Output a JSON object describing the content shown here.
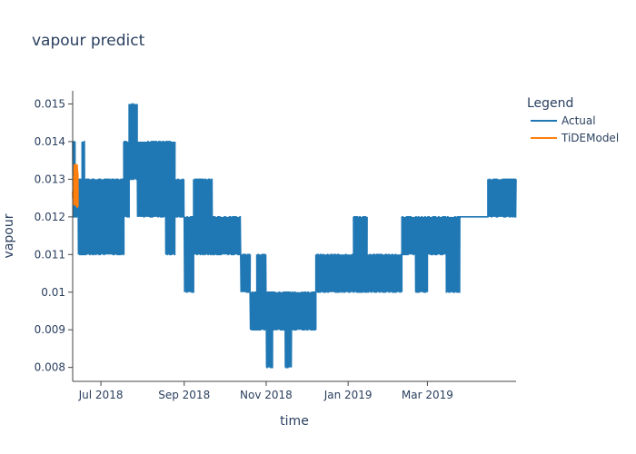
{
  "chart_data": {
    "type": "line",
    "title": "vapour predict",
    "xlabel": "time",
    "ylabel": "vapour",
    "legend_title": "Legend",
    "legend_position": "top-right",
    "x_range": [
      "2018-06-10",
      "2019-05-06"
    ],
    "ylim": [
      0.00763,
      0.01535
    ],
    "x_ticks": [
      {
        "date": "2018-07-01",
        "label": "Jul 2018"
      },
      {
        "date": "2018-09-01",
        "label": "Sep 2018"
      },
      {
        "date": "2018-11-01",
        "label": "Nov 2018"
      },
      {
        "date": "2019-01-01",
        "label": "Jan 2019"
      },
      {
        "date": "2019-03-01",
        "label": "Mar 2019"
      }
    ],
    "y_ticks": [
      {
        "value": 0.008,
        "label": "0.008"
      },
      {
        "value": 0.009,
        "label": "0.009"
      },
      {
        "value": 0.01,
        "label": "0.01"
      },
      {
        "value": 0.011,
        "label": "0.011"
      },
      {
        "value": 0.012,
        "label": "0.012"
      },
      {
        "value": 0.013,
        "label": "0.013"
      },
      {
        "value": 0.014,
        "label": "0.014"
      },
      {
        "value": 0.015,
        "label": "0.015"
      }
    ],
    "grid": false,
    "series": [
      {
        "name": "Actual",
        "color": "#1f77b4",
        "segments": [
          {
            "start": "2018-06-10",
            "end": "2018-06-12",
            "low": 0.012,
            "high": 0.014
          },
          {
            "start": "2018-06-12",
            "end": "2018-06-14",
            "low": 0.012,
            "high": 0.013
          },
          {
            "start": "2018-06-14",
            "end": "2018-06-17",
            "low": 0.011,
            "high": 0.013
          },
          {
            "start": "2018-06-17",
            "end": "2018-06-19",
            "low": 0.011,
            "high": 0.014
          },
          {
            "start": "2018-06-19",
            "end": "2018-07-18",
            "low": 0.011,
            "high": 0.013
          },
          {
            "start": "2018-07-18",
            "end": "2018-07-22",
            "low": 0.012,
            "high": 0.014
          },
          {
            "start": "2018-07-22",
            "end": "2018-07-28",
            "low": 0.013,
            "high": 0.015
          },
          {
            "start": "2018-07-28",
            "end": "2018-08-04",
            "low": 0.012,
            "high": 0.014
          },
          {
            "start": "2018-08-04",
            "end": "2018-08-18",
            "low": 0.012,
            "high": 0.014
          },
          {
            "start": "2018-08-18",
            "end": "2018-08-25",
            "low": 0.011,
            "high": 0.014
          },
          {
            "start": "2018-08-25",
            "end": "2018-09-01",
            "low": 0.012,
            "high": 0.013
          },
          {
            "start": "2018-09-01",
            "end": "2018-09-08",
            "low": 0.01,
            "high": 0.012
          },
          {
            "start": "2018-09-08",
            "end": "2018-09-15",
            "low": 0.011,
            "high": 0.013
          },
          {
            "start": "2018-09-15",
            "end": "2018-09-22",
            "low": 0.011,
            "high": 0.013
          },
          {
            "start": "2018-09-22",
            "end": "2018-10-03",
            "low": 0.011,
            "high": 0.012
          },
          {
            "start": "2018-10-03",
            "end": "2018-10-13",
            "low": 0.011,
            "high": 0.012
          },
          {
            "start": "2018-10-13",
            "end": "2018-10-20",
            "low": 0.01,
            "high": 0.011
          },
          {
            "start": "2018-10-20",
            "end": "2018-10-25",
            "low": 0.009,
            "high": 0.01
          },
          {
            "start": "2018-10-25",
            "end": "2018-11-01",
            "low": 0.009,
            "high": 0.011
          },
          {
            "start": "2018-11-01",
            "end": "2018-11-06",
            "low": 0.008,
            "high": 0.01
          },
          {
            "start": "2018-11-06",
            "end": "2018-11-15",
            "low": 0.009,
            "high": 0.01
          },
          {
            "start": "2018-11-15",
            "end": "2018-11-20",
            "low": 0.008,
            "high": 0.01
          },
          {
            "start": "2018-11-20",
            "end": "2018-12-01",
            "low": 0.009,
            "high": 0.01
          },
          {
            "start": "2018-12-01",
            "end": "2018-12-08",
            "low": 0.009,
            "high": 0.01
          },
          {
            "start": "2018-12-08",
            "end": "2018-12-15",
            "low": 0.01,
            "high": 0.011
          },
          {
            "start": "2018-12-15",
            "end": "2019-01-05",
            "low": 0.01,
            "high": 0.011
          },
          {
            "start": "2019-01-05",
            "end": "2019-01-15",
            "low": 0.01,
            "high": 0.012
          },
          {
            "start": "2019-01-15",
            "end": "2019-02-10",
            "low": 0.01,
            "high": 0.011
          },
          {
            "start": "2019-02-10",
            "end": "2019-02-20",
            "low": 0.011,
            "high": 0.012
          },
          {
            "start": "2019-02-20",
            "end": "2019-03-01",
            "low": 0.01,
            "high": 0.012
          },
          {
            "start": "2019-03-01",
            "end": "2019-03-15",
            "low": 0.011,
            "high": 0.012
          },
          {
            "start": "2019-03-15",
            "end": "2019-03-25",
            "low": 0.01,
            "high": 0.012
          },
          {
            "start": "2019-03-25",
            "end": "2019-04-15",
            "low": 0.012,
            "high": 0.012
          },
          {
            "start": "2019-04-15",
            "end": "2019-04-20",
            "low": 0.012,
            "high": 0.013
          },
          {
            "start": "2019-04-20",
            "end": "2019-05-06",
            "low": 0.012,
            "high": 0.013
          }
        ]
      },
      {
        "name": "TiDEModel",
        "color": "#ff7f0e",
        "x_start": "2018-06-10",
        "x_end": "2018-06-14",
        "low": 0.0121,
        "high": 0.0135
      }
    ]
  }
}
